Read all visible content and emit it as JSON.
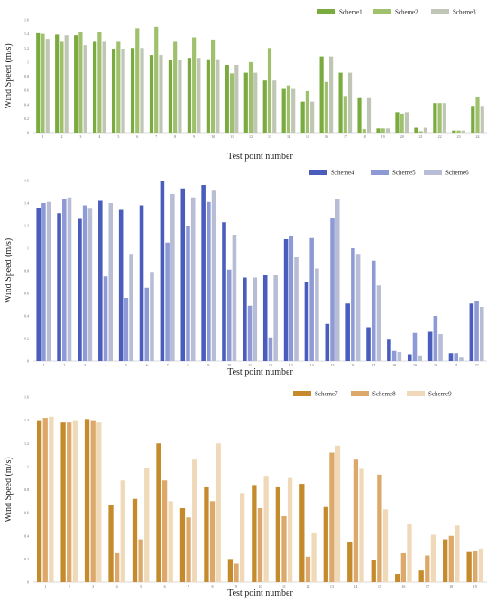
{
  "chart_data": [
    {
      "type": "bar",
      "ylabel": "Wind  Speed  (m/s)",
      "xlabel": "Test point number",
      "ylim": [
        0,
        1.6
      ],
      "yticks": [
        "0",
        "0.2",
        "0.4",
        "0.6",
        "0.8",
        "1",
        "1.2",
        "1.4",
        "1.6"
      ],
      "categories": [
        "1",
        "2",
        "3",
        "4",
        "5",
        "6",
        "7",
        "8",
        "9",
        "10",
        "11",
        "12",
        "13",
        "14",
        "15",
        "16",
        "17",
        "18",
        "19",
        "20",
        "21",
        "22",
        "23",
        "24"
      ],
      "legend_position": "top-right",
      "series": [
        {
          "name": "Scheme1",
          "color": "#7aab3e",
          "values": [
            1.41,
            1.39,
            1.38,
            1.3,
            1.19,
            1.2,
            1.1,
            1.03,
            1.06,
            1.04,
            0.96,
            0.85,
            0.74,
            0.62,
            0.44,
            1.08,
            0.85,
            0.49,
            0.06,
            0.29,
            0.07,
            0.42,
            0.03,
            0.38
          ]
        },
        {
          "name": "Scheme2",
          "color": "#9fc06c",
          "values": [
            1.4,
            1.3,
            1.42,
            1.43,
            1.3,
            1.48,
            1.5,
            1.3,
            1.35,
            1.32,
            0.84,
            1.0,
            1.2,
            0.67,
            0.59,
            0.72,
            0.52,
            0.05,
            0.06,
            0.27,
            0.02,
            0.42,
            0.03,
            0.51
          ]
        },
        {
          "name": "Scheme3",
          "color": "#c0c6b6",
          "values": [
            1.33,
            1.38,
            1.24,
            1.3,
            1.19,
            1.2,
            1.1,
            1.03,
            1.06,
            1.04,
            0.96,
            0.85,
            0.74,
            0.62,
            0.44,
            1.08,
            0.85,
            0.49,
            0.06,
            0.29,
            0.07,
            0.42,
            0.03,
            0.38
          ]
        }
      ]
    },
    {
      "type": "bar",
      "ylabel": "Wind  Speed  (m/s)",
      "xlabel": "Test point number",
      "ylim": [
        0,
        1.6
      ],
      "yticks": [
        "0",
        "0.2",
        "0.4",
        "0.6",
        "0.8",
        "1",
        "1.2",
        "1.4",
        "1.6"
      ],
      "categories": [
        "1",
        "2",
        "3",
        "4",
        "5",
        "6",
        "7",
        "8",
        "9",
        "10",
        "11",
        "12",
        "13",
        "14",
        "15",
        "16",
        "17",
        "18",
        "19",
        "20",
        "21",
        "22"
      ],
      "legend_position": "top-right",
      "series": [
        {
          "name": "Scheme4",
          "color": "#4a5cbc",
          "values": [
            1.36,
            1.31,
            1.26,
            1.42,
            1.34,
            1.38,
            1.6,
            1.53,
            1.56,
            1.23,
            0.74,
            0.76,
            1.08,
            0.7,
            0.33,
            0.51,
            0.3,
            0.19,
            0.06,
            0.26,
            0.07,
            0.51
          ]
        },
        {
          "name": "Scheme5",
          "color": "#8e9ad6",
          "values": [
            1.4,
            1.44,
            1.38,
            0.75,
            0.56,
            0.65,
            1.05,
            1.2,
            1.41,
            0.81,
            0.49,
            0.21,
            1.11,
            1.09,
            1.27,
            1.0,
            0.89,
            0.09,
            0.25,
            0.4,
            0.07,
            0.53
          ]
        },
        {
          "name": "Scheme6",
          "color": "#b7bdd4",
          "values": [
            1.41,
            1.45,
            1.35,
            1.4,
            0.95,
            0.79,
            1.48,
            1.45,
            1.51,
            1.12,
            0.74,
            0.76,
            0.92,
            0.82,
            1.44,
            0.95,
            0.67,
            0.08,
            0.05,
            0.24,
            0.03,
            0.48
          ]
        }
      ]
    },
    {
      "type": "bar",
      "ylabel": "Wind  Speed  (m/s)",
      "xlabel": "Test point number",
      "ylim": [
        0,
        1.6
      ],
      "yticks": [
        "0",
        "0.2",
        "0.4",
        "0.6",
        "0.8",
        "1",
        "1.2",
        "1.4",
        "1.6"
      ],
      "categories": [
        "1",
        "2",
        "3",
        "4",
        "5",
        "6",
        "7",
        "8",
        "9",
        "10",
        "11",
        "12",
        "13",
        "14",
        "15",
        "16",
        "17",
        "18",
        "19"
      ],
      "legend_position": "top-right",
      "series": [
        {
          "name": "Scheme7",
          "color": "#c48a2c",
          "values": [
            1.4,
            1.38,
            1.41,
            0.67,
            0.72,
            1.2,
            0.64,
            0.82,
            0.2,
            0.84,
            0.82,
            0.85,
            0.65,
            0.35,
            0.19,
            0.07,
            0.1,
            0.37,
            0.26
          ]
        },
        {
          "name": "Scheme8",
          "color": "#dca96a",
          "values": [
            1.42,
            1.38,
            1.4,
            0.25,
            0.37,
            0.88,
            0.56,
            0.7,
            0.16,
            0.64,
            0.57,
            0.22,
            1.12,
            1.06,
            0.93,
            0.25,
            0.23,
            0.4,
            0.27
          ]
        },
        {
          "name": "Scheme9",
          "color": "#f0d9b8",
          "values": [
            1.43,
            1.4,
            1.38,
            0.88,
            0.99,
            0.7,
            1.06,
            1.2,
            0.77,
            0.92,
            0.9,
            0.43,
            1.18,
            0.98,
            0.63,
            0.5,
            0.41,
            0.49,
            0.29
          ]
        }
      ]
    }
  ]
}
